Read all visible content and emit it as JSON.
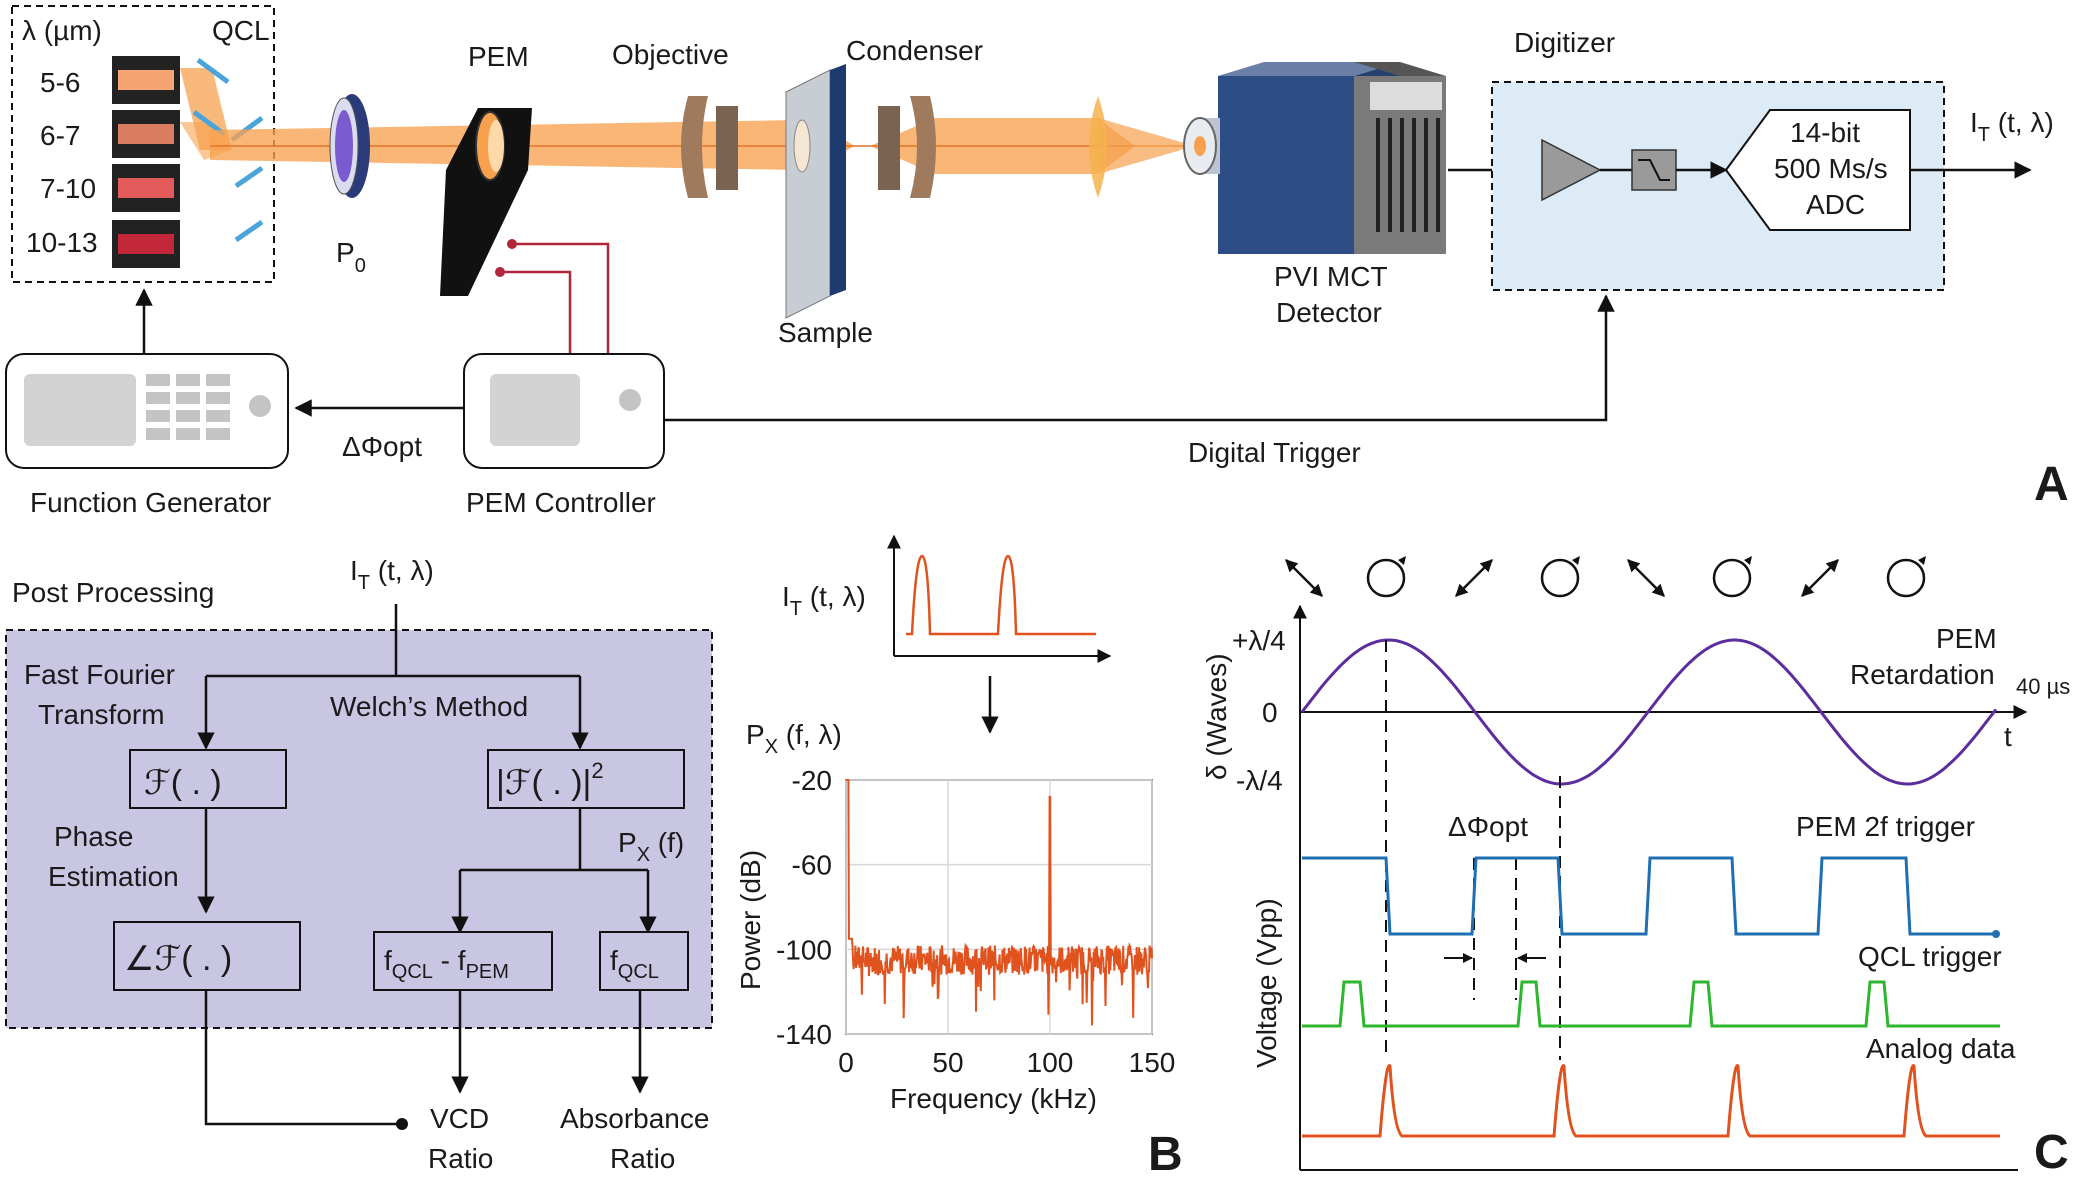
{
  "panel_a": {
    "letter": "A",
    "qcl": {
      "title": "QCL",
      "lambda_header": "λ (µm)",
      "ranges": [
        "5-6",
        "6-7",
        "7-10",
        "10-13"
      ],
      "chip_colors": [
        "#f6a572",
        "#d97c5f",
        "#e35a5a",
        "#c2283a"
      ]
    },
    "polarizer": {
      "label_main": "P",
      "label_sub": "0"
    },
    "pem": "PEM",
    "objective": "Objective",
    "condenser": "Condenser",
    "sample": "Sample",
    "detector": [
      "PVI MCT",
      "Detector"
    ],
    "digitizer": {
      "title": "Digitizer",
      "adc": [
        "14-bit",
        "500 Ms/s",
        "ADC"
      ],
      "output_main": "I",
      "output_sub": "T",
      "output_args": " (t, λ)"
    },
    "function_generator": "Function Generator",
    "pem_controller": "PEM Controller",
    "delta_phi": "ΔΦopt",
    "digital_trigger": "Digital Trigger",
    "colors": {
      "beam": "#f7a14f",
      "wire": "#b0263a",
      "digitizer_fill": "#dcebf5",
      "device_fill": "#2c4d86"
    }
  },
  "panel_post": {
    "title": "Post Processing",
    "input_main": "I",
    "input_sub": "T",
    "input_args": " (t, λ)",
    "fft": [
      "Fast Fourier",
      "Transform"
    ],
    "welch": "Welch’s Method",
    "fourier_box": "ℱ( . )",
    "power_box": "|ℱ( . )|",
    "power_exp": "2",
    "px_main": "P",
    "px_sub": "X",
    "px_args": " (f)",
    "phase": [
      "Phase",
      "Estimation"
    ],
    "angle_box": "∠ℱ( . )",
    "diff": {
      "f1": "f",
      "s1": "QCL",
      "mid": " - f",
      "s2": "PEM"
    },
    "fqcl": {
      "f": "f",
      "s": "QCL"
    },
    "vcd": [
      "VCD",
      "Ratio"
    ],
    "absorbance": [
      "Absorbance",
      "Ratio"
    ],
    "colors": {
      "fill": "#c9c6e3"
    }
  },
  "panel_b": {
    "letter": "B",
    "signal_main": "I",
    "signal_sub": "T",
    "signal_args": " (t, λ)",
    "spectrum_main": "P",
    "spectrum_sub": "X",
    "spectrum_args": " (f, λ)",
    "chart_data": {
      "type": "line",
      "x_range": [
        0,
        150
      ],
      "y_range": [
        -140,
        -20
      ],
      "x_ticks": [
        "0",
        "50",
        "100",
        "150"
      ],
      "y_ticks": [
        "-20",
        "-60",
        "-100",
        "-140"
      ],
      "xlabel": "Frequency (kHz)",
      "ylabel": "Power (dB)",
      "grid": true,
      "noise_floor_db": -105,
      "peaks": [
        {
          "x": 0,
          "y": -20
        },
        {
          "x": 100,
          "y": -28
        }
      ],
      "color": "#e0531f"
    }
  },
  "panel_c": {
    "letter": "C",
    "ylabel_top": "δ (Waves)",
    "ylabel_bottom": "Voltage (Vpp)",
    "y_ticks": [
      "+λ/4",
      "0",
      "-λ/4"
    ],
    "t_label": "t",
    "period_label": "40 µs",
    "retardation_label": [
      "PEM",
      "Retardation"
    ],
    "delta_phi": "ΔΦopt",
    "trigger_label": "PEM 2f trigger",
    "qcl_label": "QCL trigger",
    "analog_label": "Analog data",
    "polarization_states": [
      "linear",
      "circular",
      "linear",
      "circular",
      "linear",
      "circular",
      "linear",
      "circular"
    ],
    "colors": {
      "retardation": "#5b2d9e",
      "trigger": "#1f6fb2",
      "qcl": "#2db52d",
      "analog": "#e0531f"
    }
  }
}
